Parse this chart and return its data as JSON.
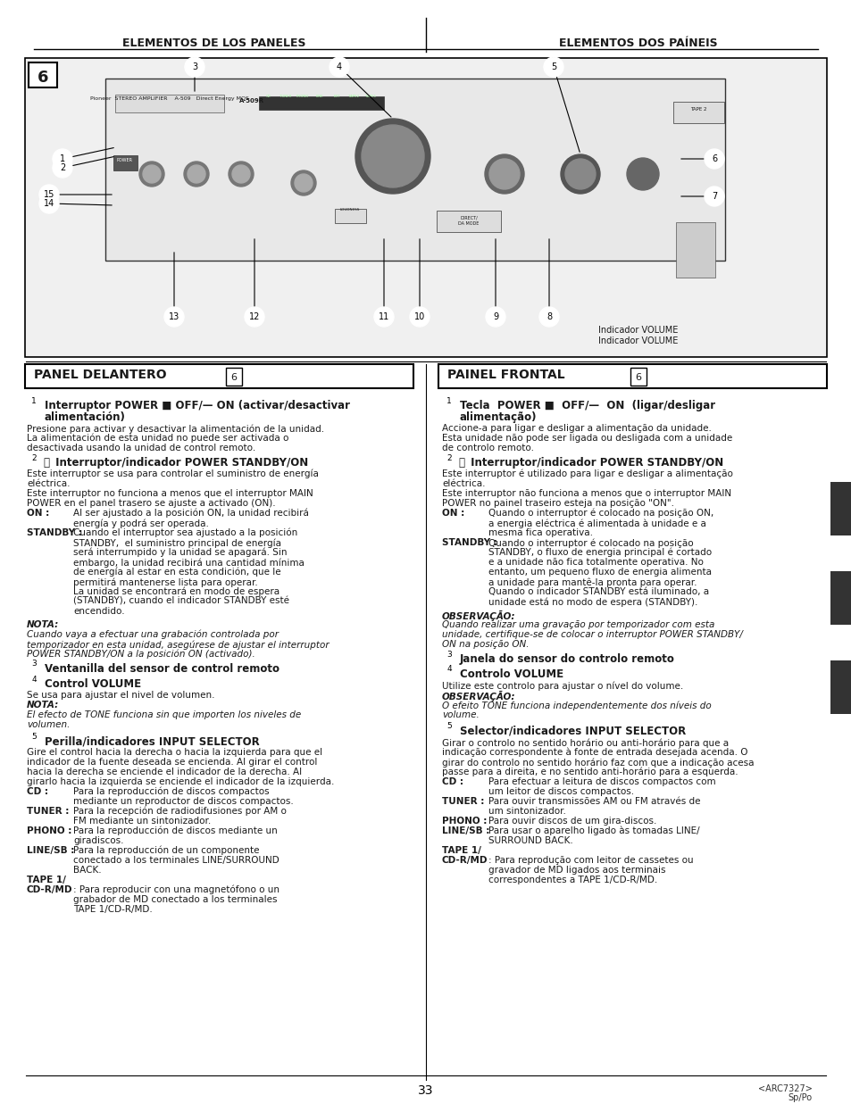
{
  "title_left": "ELEMENTOS DE LOS PANELES",
  "title_right": "ELEMENTOS DOS PAÍNEIS",
  "panel_left_title": "PANEL DELANTERO",
  "panel_right_title": "PAINEL FRONTAL",
  "panel_number": "6",
  "page_number": "33",
  "arc_code": "<ARC7327>",
  "lang_code": "Sp/Po",
  "left_sections": [
    {
      "num": "1",
      "heading": "Interruptor POWER ■ OFF/— ON (activar/desactivar\nalimentación)",
      "body": "Presione para activar y desactivar la alimentación de la unidad.\nLa alimentación de esta unidad no puede ser activada o\ndesactivada usando la unidad de control remoto."
    },
    {
      "num": "2",
      "heading": "⏻  Interruptor/indicador POWER STANDBY/ON",
      "body": "Este interruptor se usa para controlar el suministro de energía\neléctrica.\nEste interruptor no funciona a menos que el interruptor MAIN\nPOWER en el panel trasero se ajuste a activado (ON).\nON :         Al ser ajustado a la posición ON, la unidad recibirá\n             energía y podrá ser operada.\nSTANDBY : Cuando el interruptor sea ajustado a la posición\n             STANDBY,  el suministro principal de energía\n             será interrumpido y la unidad se apagará. Sin\n             embargo, la unidad recibirá una cantidad mínima\n             de energía al estar en esta condición, que le\n             permitirá mantenerse lista para operar.\n             La unidad se encontrará en modo de espera\n             (STANDBY), cuando el indicador STANDBY esté\n             encendido.\nNOTA:\nCuando vaya a efectuar una grabación controlada por\ntemporizador en esta unidad, asegúrese de ajustar el interruptor\nPOWER STANDBY/ON a la posición ON (activado)."
    },
    {
      "num": "3",
      "heading": "Ventanilla del sensor de control remoto",
      "body": ""
    },
    {
      "num": "4",
      "heading": "Control VOLUME",
      "body": "Se usa para ajustar el nivel de volumen.\nNOTA:\nEl efecto de TONE funciona sin que importen los niveles de\nvolumen."
    },
    {
      "num": "5",
      "heading": "Perilla/indicadores INPUT SELECTOR",
      "body": "Gire el control hacia la derecha o hacia la izquierda para que el\nindicador de la fuente deseada se encienda. Al girar el control\nhacia la derecha se enciende el indicador de la derecha. Al\ngirarlo hacia la izquierda se enciende el indicador de la izquierda.\nCD :         Para la reproducción de discos compactos\n             mediante un reproductor de discos compactos.\nTUNER :    Para la recepción de radiodifusiones por AM o\n             FM mediante un sintonizador.\nPHONO :   Para la reproducción de discos mediante un\n             giradiscos.\nLINE/SB :  Para la reproducción de un componente\n             conectado a los terminales LINE/SURROUND\n             BACK.\nTAPE 1/\nCD-R/MD  : Para reproducir con una magnetófono o un\n             grabador de MD conectado a los terminales\n             TAPE 1/CD-R/MD."
    }
  ],
  "right_sections": [
    {
      "num": "1",
      "heading": "Tecla  POWER ■  OFF/—  ON  (ligar/desligar\nalimentação)",
      "body": "Accione-a para ligar e desligar a alimentação da unidade.\nEsta unidade não pode ser ligada ou desligada com a unidade\nde controlo remoto."
    },
    {
      "num": "2",
      "heading": "⏻  Interruptor/indicador POWER STANDBY/ON",
      "body": "Este interruptor é utilizado para ligar e desligar a alimentação\neléctrica.\nEste interruptor não funciona a menos que o interruptor MAIN\nPOWER no painel traseiro esteja na posição \"ON\".\nON :         Quando o interruptor é colocado na posição ON,\n             a energia eléctrica é alimentada à unidade e a\n             mesma fica operativa.\nSTANDBY :  Quando o interruptor é colocado na posição\n             STANDBY, o fluxo de energia principal é cortado\n             e a unidade não fica totalmente operativa. No\n             entanto, um pequeno fluxo de energia alimenta\n             a unidade para mantê-la pronta para operar.\n             Quando o indicador STANDBY está iluminado, a\n             unidade está no modo de espera (STANDBY).\nOBSERVAÇÃO:\nQuando realizar uma gravação por temporizador com esta\nunidade, certifique-se de colocar o interruptor POWER STANDBY/\nON na posição ON."
    },
    {
      "num": "3",
      "heading": "Janela do sensor do controlo remoto",
      "body": ""
    },
    {
      "num": "4",
      "heading": "Controlo VOLUME",
      "body": "Utilize este controlo para ajustar o nível do volume.\nOBSERVAÇÃO:\nO efeito TONE funciona independentemente dos níveis do\nvolume."
    },
    {
      "num": "5",
      "heading": "Selector/indicadores INPUT SELECTOR",
      "body": "Girar o controlo no sentido horário ou anti-horário para que a\nindicação correspondente à fonte de entrada desejada acenda. O\ngirar do controlo no sentido horário faz com que a indicação acesa\npasse para a direita, e no sentido anti-horário para a esquerda.\nCD :         Para efectuar a leitura de discos compactos com\n             um leitor de discos compactos.\nTUNER :    Para ouvir transmissões AM ou FM através de\n             um sintonizador.\nPHONO :   Para ouvir discos de um gira-discos.\nLINE/SB :  Para usar o aparelho ligado às tomadas LINE/\n             SURROUND BACK.\nTAPE 1/\nCD-R/MD  : Para reprodução com leitor de cassetes ou\n             gravador de MD ligados aos terminais\n             correspondentes a TAPE 1/CD-R/MD."
    }
  ],
  "diagram_label_bottom_left": "Indicador VOLUME\nIndicador VOLUME",
  "bg_color": "#ffffff",
  "text_color": "#1a1a1a",
  "border_color": "#000000"
}
